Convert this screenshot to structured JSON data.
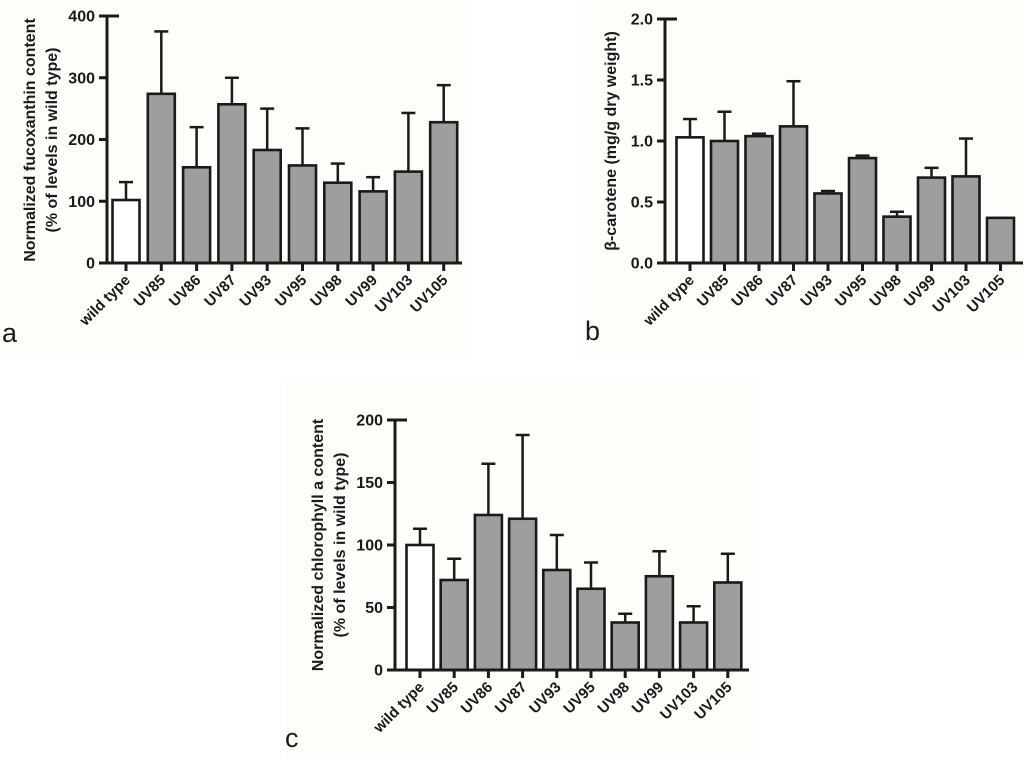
{
  "colors": {
    "axis": "#1a1a1a",
    "bar_mutant_fill": "#9e9e9e",
    "bar_wildtype_fill": "#ffffff",
    "bar_outline": "#1a1a1a",
    "panel_background": "#fdfdfa",
    "page_background": "#ffffff"
  },
  "chart_data": [
    {
      "panel": "a",
      "panel_letter": "a",
      "type": "bar",
      "ylabel_lines": [
        "Normalized fucoxanthin content",
        "(% of levels in wild type)"
      ],
      "categories": [
        "wild type",
        "UV85",
        "UV86",
        "UV87",
        "UV93",
        "UV95",
        "UV98",
        "UV99",
        "UV103",
        "UV105"
      ],
      "values": [
        102,
        274,
        155,
        257,
        183,
        158,
        130,
        116,
        148,
        228
      ],
      "errors_plus": [
        29,
        101,
        65,
        43,
        67,
        60,
        31,
        23,
        95,
        60
      ],
      "wildtype_index": 0,
      "ylim": [
        0,
        400
      ],
      "yticks": [
        0,
        100,
        200,
        300,
        400
      ],
      "ytick_labels": [
        "0",
        "100",
        "200",
        "300",
        "400"
      ],
      "grid": false,
      "legend": null,
      "error_bars": "upper only, capped"
    },
    {
      "panel": "b",
      "panel_letter": "b",
      "type": "bar",
      "ylabel_lines": [
        "β-carotene (mg/g dry weight)"
      ],
      "categories": [
        "wild type",
        "UV85",
        "UV86",
        "UV87",
        "UV93",
        "UV95",
        "UV98",
        "UV99",
        "UV103",
        "UV105"
      ],
      "values": [
        1.03,
        1.0,
        1.04,
        1.12,
        0.57,
        0.86,
        0.38,
        0.7,
        0.71,
        0.37
      ],
      "errors_plus": [
        0.15,
        0.24,
        0.02,
        0.37,
        0.02,
        0.02,
        0.04,
        0.08,
        0.31,
        0
      ],
      "wildtype_index": 0,
      "ylim": [
        0,
        2.0
      ],
      "yticks": [
        0,
        0.5,
        1.0,
        1.5,
        2.0
      ],
      "ytick_labels": [
        "0.0",
        "0.5",
        "1.0",
        "1.5",
        "2.0"
      ],
      "grid": false,
      "legend": null,
      "error_bars": "upper only, capped"
    },
    {
      "panel": "c",
      "panel_letter": "c",
      "type": "bar",
      "ylabel_lines": [
        "Normalized chlorophyll a content",
        "(% of levels in wild type)"
      ],
      "categories": [
        "wild type",
        "UV85",
        "UV86",
        "UV87",
        "UV93",
        "UV95",
        "UV98",
        "UV99",
        "UV103",
        "UV105"
      ],
      "values": [
        100,
        72,
        124,
        121,
        80,
        65,
        38,
        75,
        38,
        70
      ],
      "errors_plus": [
        13,
        17,
        41,
        67,
        28,
        21,
        7,
        20,
        13,
        23
      ],
      "wildtype_index": 0,
      "ylim": [
        0,
        200
      ],
      "yticks": [
        0,
        50,
        100,
        150,
        200
      ],
      "ytick_labels": [
        "0",
        "50",
        "100",
        "150",
        "200"
      ],
      "grid": false,
      "legend": null,
      "error_bars": "upper only, capped"
    }
  ]
}
